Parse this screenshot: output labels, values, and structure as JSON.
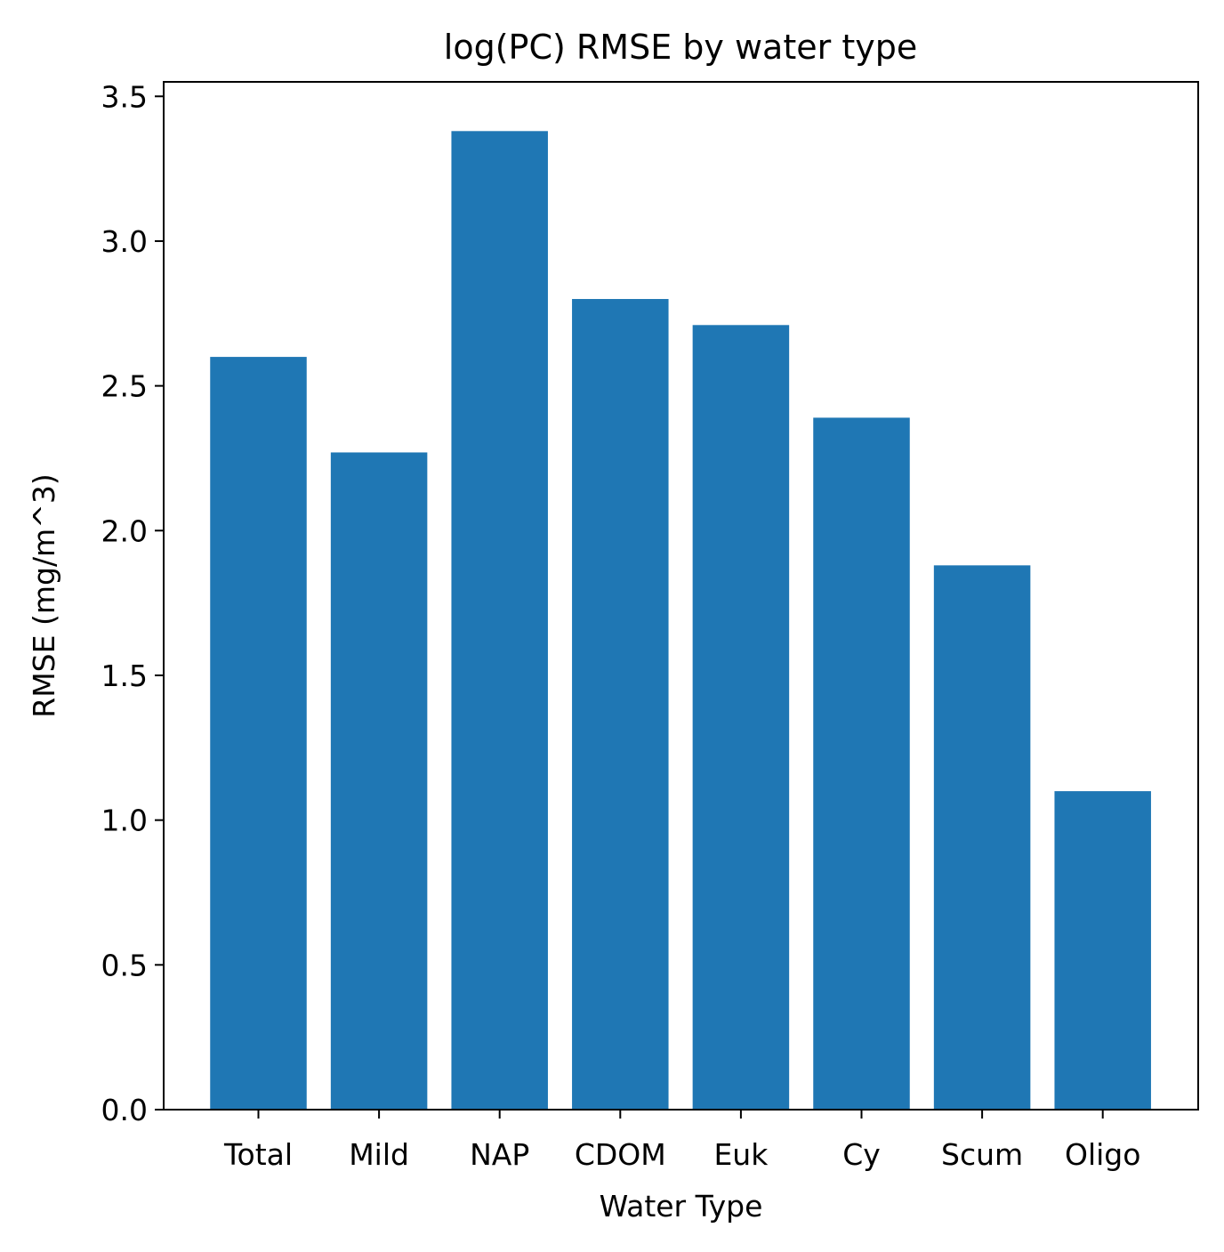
{
  "chart_data": {
    "type": "bar",
    "title": "log(PC) RMSE by water type",
    "xlabel": "Water Type",
    "ylabel": "RMSE (mg/m^3)",
    "categories": [
      "Total",
      "Mild",
      "NAP",
      "CDOM",
      "Euk",
      "Cy",
      "Scum",
      "Oligo"
    ],
    "values": [
      2.6,
      2.27,
      3.38,
      2.8,
      2.71,
      2.39,
      1.88,
      1.1
    ],
    "ylim": [
      0,
      3.55
    ],
    "yticks": [
      0.0,
      0.5,
      1.0,
      1.5,
      2.0,
      2.5,
      3.0,
      3.5
    ],
    "ytick_labels": [
      "0.0",
      "0.5",
      "1.0",
      "1.5",
      "2.0",
      "2.5",
      "3.0",
      "3.5"
    ],
    "bar_color": "#1f77b4",
    "grid": false,
    "legend": "none"
  }
}
